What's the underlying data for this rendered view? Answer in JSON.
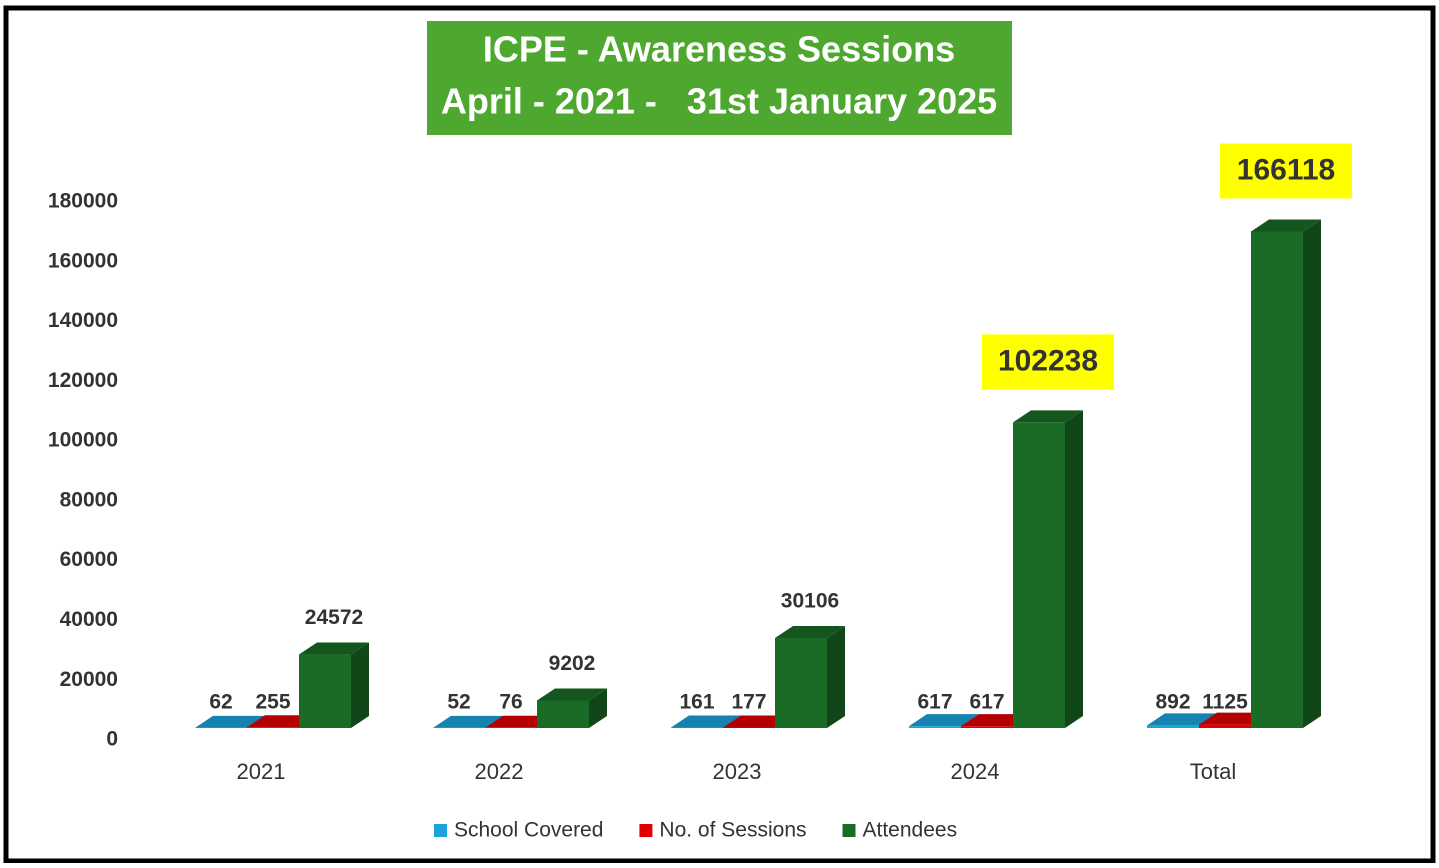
{
  "chart_data": {
    "type": "bar3d",
    "title": [
      "ICPE - Awareness Sessions",
      "April - 2021 -   31st January 2025"
    ],
    "title_color": "#4ea72e",
    "categories": [
      "2021",
      "2022",
      "2023",
      "2024",
      "Total"
    ],
    "series": [
      {
        "name": "School Covered",
        "color": "#1aa3dc",
        "values": [
          62,
          52,
          161,
          617,
          892
        ]
      },
      {
        "name": "No. of Sessions",
        "color": "#e00000",
        "values": [
          255,
          76,
          177,
          617,
          1125
        ]
      },
      {
        "name": "Attendees",
        "color": "#1a6b26",
        "values": [
          24572,
          9202,
          30106,
          102238,
          166118
        ],
        "highlighted": [
          false,
          false,
          false,
          true,
          true
        ],
        "highlight_color": "#ffff00"
      }
    ],
    "ylim": [
      0,
      180000
    ],
    "yticks": [
      0,
      20000,
      40000,
      60000,
      80000,
      100000,
      120000,
      140000,
      160000,
      180000
    ],
    "legend": "bottom"
  }
}
